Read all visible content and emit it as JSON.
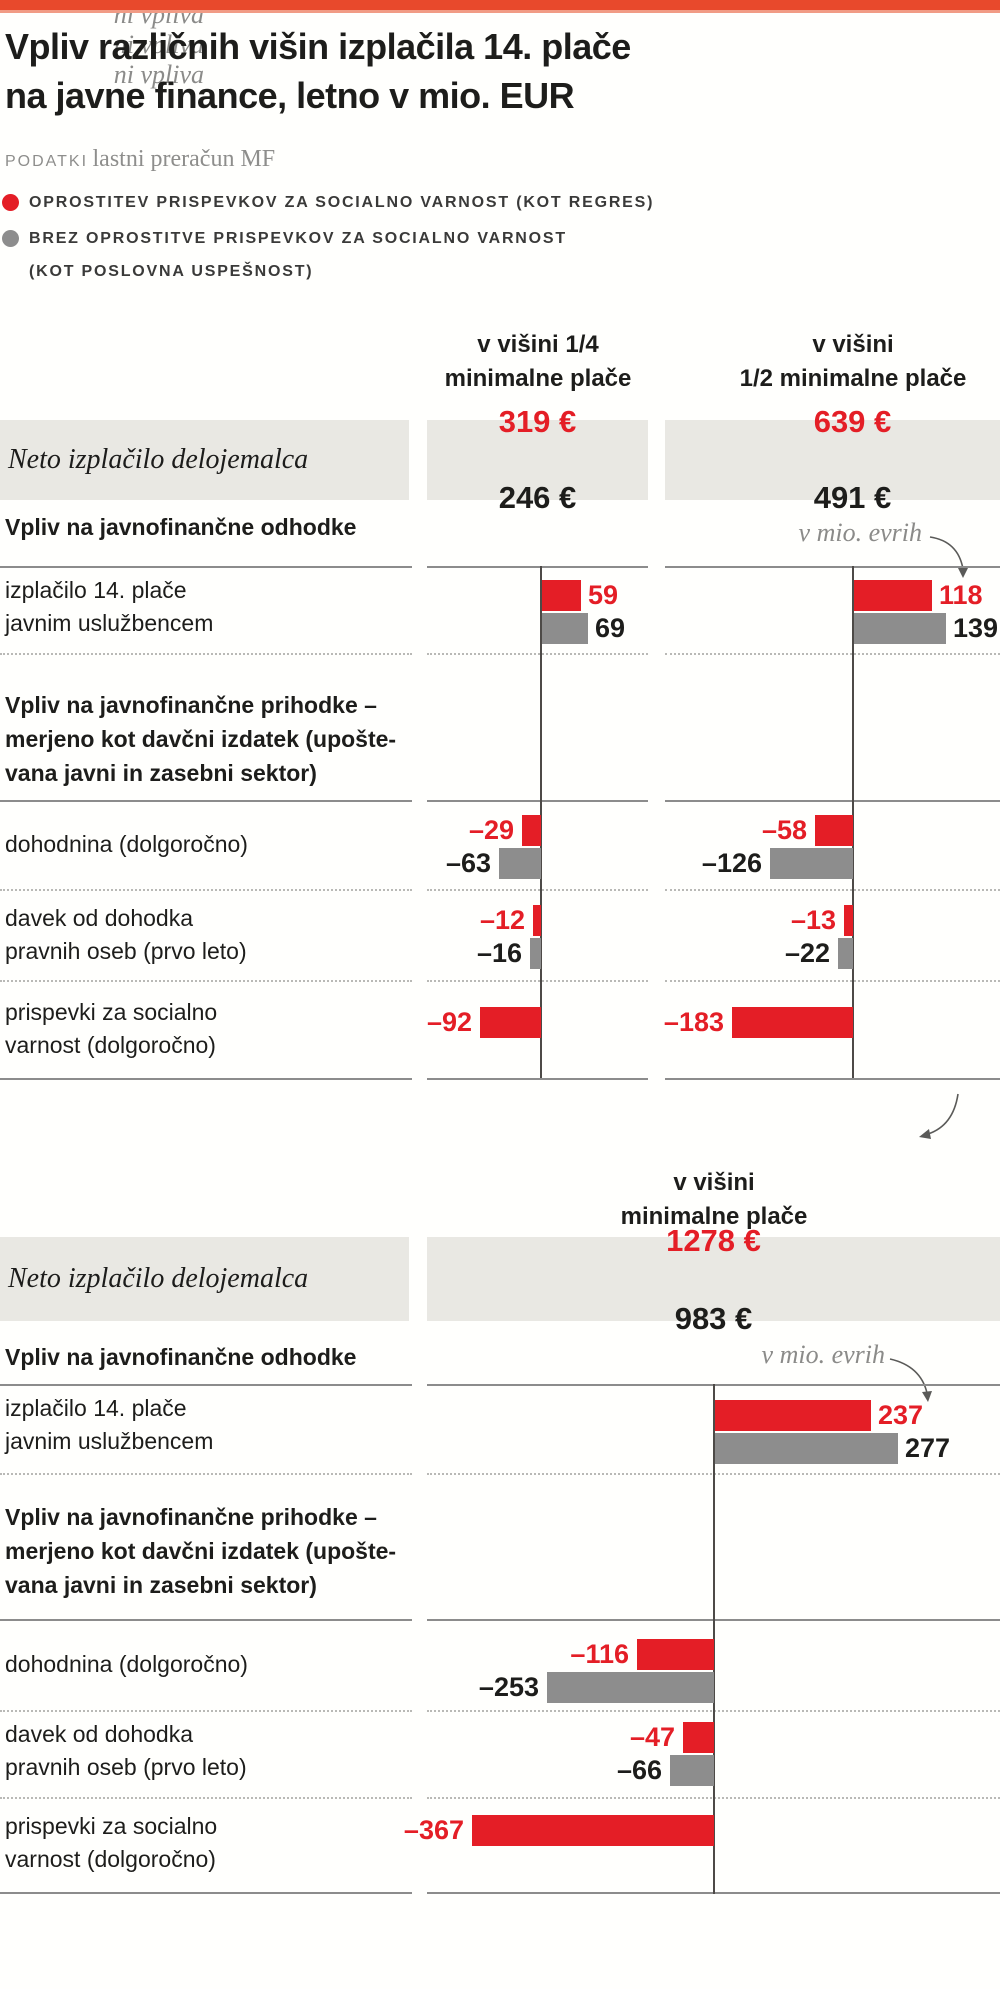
{
  "header": {
    "title": "Vpliv različnih višin izplačila 14. plače\nna javne finance, letno v mio. EUR",
    "source_label": "PODATKI",
    "source_value": "lastni preračun MF"
  },
  "legend": [
    {
      "name": "oprostitev",
      "color": "#e41e26",
      "label": "OPROSTITEV PRISPEVKOV ZA SOCIALNO VARNOST (KOT REGRES)"
    },
    {
      "name": "brez-oprostitve",
      "color": "#8d8d8d",
      "label": "BREZ OPROSTITVE PRISPEVKOV ZA SOCIALNO VARNOST\n(KOT POSLOVNA USPEŠNOST)"
    }
  ],
  "labels": {
    "neto": "Neto izplačilo delojemalca",
    "odhodki": "Vpliv na javnofinančne odhodke",
    "unit_note": "v mio. evrih",
    "prihodki": "Vpliv na javnofinančne prihodke –\nmerjeno kot davčni izdatek (upošte-\nvana javni in zasebni sektor)",
    "rows": [
      "izplačilo 14. plače\njavnim uslužbencem",
      "dohodnina (dolgoročno)",
      "davek od dohodka\npravnih oseb (prvo leto)",
      "prispevki za socialno\nvarnost (dolgoročno)"
    ],
    "ni_vpliva": "ni vpliva"
  },
  "chart_data": {
    "type": "bar",
    "title": "Vpliv različnih višin izplačila 14. plače na javne finance, letno v mio. EUR",
    "unit": "mio EUR",
    "orientation": "horizontal",
    "series_legend": [
      "OPROSTITEV PRISPEVKOV ZA SOCIALNO VARNOST (KOT REGRES)",
      "BREZ OPROSTITVE PRISPEVKOV ZA SOCIALNO VARNOST (KOT POSLOVNA USPEŠNOST)"
    ],
    "series_colors": [
      "#e41e26",
      "#8d8d8d"
    ],
    "row_categories": [
      "izplačilo 14. plače javnim uslužbencem",
      "dohodnina (dolgoročno)",
      "davek od dohodka pravnih oseb (prvo leto)",
      "prispevki za socialno varnost (dolgoročno)"
    ],
    "columns": [
      {
        "header": "v višini 1/4\nminimalne plače",
        "neto": {
          "red": "319 €",
          "black": "246 €"
        },
        "values": [
          {
            "red": 59,
            "gray": 69
          },
          {
            "red": -29,
            "gray": -63
          },
          {
            "red": -12,
            "gray": -16
          },
          {
            "red": -92,
            "gray": null
          }
        ]
      },
      {
        "header": "v višini\n1/2 minimalne plače",
        "neto": {
          "red": "639 €",
          "black": "491 €"
        },
        "values": [
          {
            "red": 118,
            "gray": 139
          },
          {
            "red": -58,
            "gray": -126
          },
          {
            "red": -13,
            "gray": -22
          },
          {
            "red": -183,
            "gray": null
          }
        ]
      },
      {
        "header": "v višini\nminimalne plače",
        "neto": {
          "red": "1278 €",
          "black": "983 €"
        },
        "values": [
          {
            "red": 237,
            "gray": 277
          },
          {
            "red": -116,
            "gray": -253
          },
          {
            "red": -47,
            "gray": -66
          },
          {
            "red": -367,
            "gray": null
          }
        ]
      }
    ],
    "no_impact_note": "ni vpliva"
  }
}
